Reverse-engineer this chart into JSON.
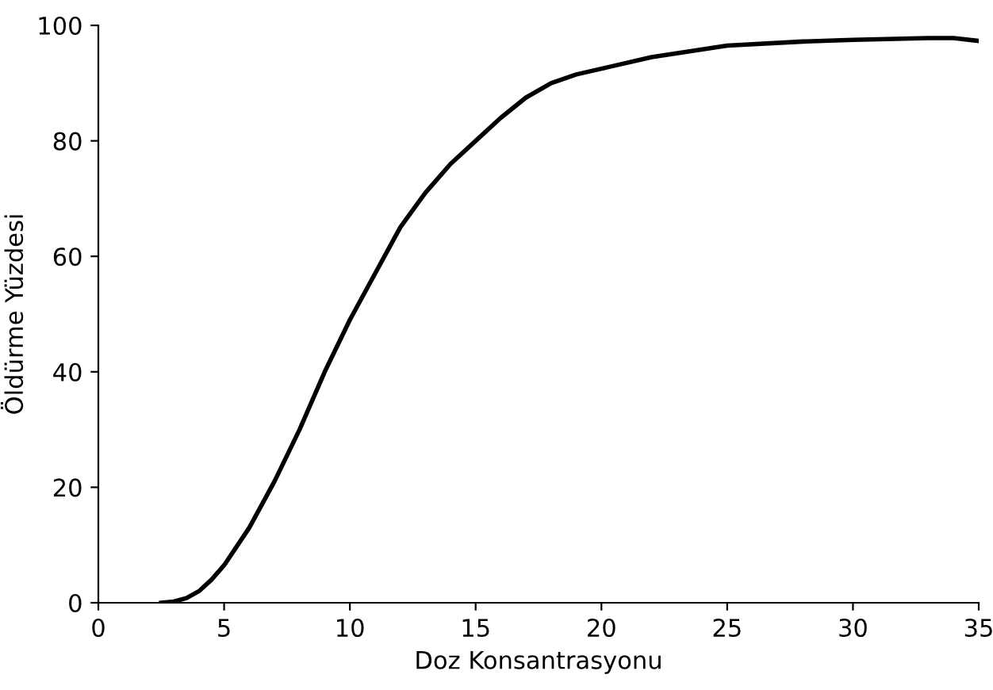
{
  "chart_data": {
    "type": "line",
    "xlabel": "Doz Konsantrasyonu",
    "ylabel": "Öldürme Yüzdesi",
    "x": [
      2.5,
      3,
      3.5,
      4,
      4.5,
      5,
      6,
      7,
      8,
      9,
      10,
      11,
      12,
      13,
      14,
      15,
      16,
      17,
      18,
      19,
      20,
      22,
      25,
      28,
      30,
      33,
      34,
      35
    ],
    "series": [
      {
        "color": "#000000",
        "values": [
          0,
          0.2,
          0.8,
          2,
          4,
          6.5,
          13,
          21,
          30,
          40,
          49,
          57,
          65,
          71,
          76,
          80,
          84,
          87.5,
          90,
          91.5,
          92.5,
          94.5,
          96.5,
          97.2,
          97.5,
          97.8,
          97.8,
          97.3
        ]
      }
    ],
    "xlim": [
      0,
      35
    ],
    "ylim": [
      0,
      100
    ],
    "xticks": [
      0,
      5,
      10,
      15,
      20,
      25,
      30,
      35
    ],
    "yticks": [
      0,
      20,
      40,
      60,
      80,
      100
    ],
    "grid": false,
    "legend": false,
    "marker": "none",
    "line_style": "solid"
  }
}
